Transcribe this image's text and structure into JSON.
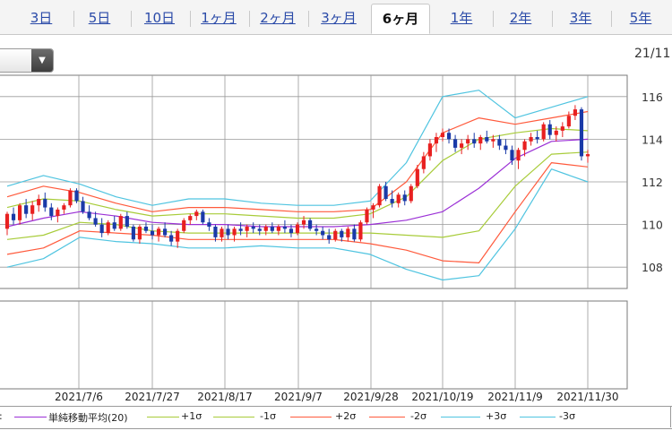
{
  "tabs": [
    {
      "label": "3日",
      "active": false
    },
    {
      "label": "5日",
      "active": false
    },
    {
      "label": "10日",
      "active": false
    },
    {
      "label": "1ヶ月",
      "active": false
    },
    {
      "label": "2ヶ月",
      "active": false
    },
    {
      "label": "3ヶ月",
      "active": false
    },
    {
      "label": "6ヶ月",
      "active": true
    },
    {
      "label": "1年",
      "active": false
    },
    {
      "label": "2年",
      "active": false
    },
    {
      "label": "3年",
      "active": false
    },
    {
      "label": "5年",
      "active": false
    }
  ],
  "date_label": "21/11",
  "legend": {
    "lead": ":",
    "items": [
      {
        "label": "単純移動平均(20)",
        "color": "#9b30d6"
      },
      {
        "label": "+1σ",
        "color": "#a8cc3a"
      },
      {
        "label": "-1σ",
        "color": "#a8cc3a"
      },
      {
        "label": "+2σ",
        "color": "#ff5a3c"
      },
      {
        "label": "-2σ",
        "color": "#ff5a3c"
      },
      {
        "label": "+3σ",
        "color": "#4fc4e0"
      },
      {
        "label": "-3σ",
        "color": "#4fc4e0"
      }
    ]
  },
  "chart_data": {
    "type": "candlestick",
    "y_ticks": [
      108,
      110,
      112,
      114,
      116
    ],
    "ylim": [
      107.0,
      117.0
    ],
    "x_ticks": [
      "2021/7/6",
      "2021/7/27",
      "2021/8/17",
      "2021/9/7",
      "2021/9/28",
      "2021/10/19",
      "2021/11/9",
      "2021/11/30"
    ],
    "up_color": "#e82020",
    "down_color": "#1a3aa8",
    "series": [
      {
        "name": "単純移動平均(20)",
        "color": "#9b30d6",
        "values": [
          109.9,
          110.3,
          110.6,
          110.4,
          110.1,
          110.0,
          110.0,
          109.9,
          109.9,
          109.9,
          110.0,
          110.2,
          110.6,
          111.7,
          113.1,
          113.9,
          114.0
        ]
      },
      {
        "name": "+1σ",
        "color": "#a8cc3a",
        "values": [
          110.8,
          111.2,
          111.1,
          110.7,
          110.4,
          110.5,
          110.5,
          110.4,
          110.3,
          110.3,
          110.5,
          111.3,
          113.0,
          114.0,
          114.3,
          114.5,
          114.4
        ]
      },
      {
        "name": "-1σ",
        "color": "#a8cc3a",
        "values": [
          109.3,
          109.5,
          110.1,
          110.0,
          109.7,
          109.6,
          109.6,
          109.6,
          109.6,
          109.6,
          109.6,
          109.5,
          109.4,
          109.7,
          111.8,
          113.3,
          113.4
        ]
      },
      {
        "name": "+2σ",
        "color": "#ff5a3c",
        "values": [
          111.3,
          111.8,
          111.5,
          111.0,
          110.6,
          110.8,
          110.8,
          110.7,
          110.6,
          110.6,
          110.7,
          112.0,
          114.3,
          115.0,
          114.7,
          115.0,
          115.3
        ]
      },
      {
        "name": "-2σ",
        "color": "#ff5a3c",
        "values": [
          108.6,
          108.9,
          109.7,
          109.6,
          109.5,
          109.3,
          109.3,
          109.3,
          109.3,
          109.3,
          109.1,
          108.8,
          108.3,
          108.2,
          110.6,
          112.9,
          112.7
        ]
      },
      {
        "name": "+3σ",
        "color": "#4fc4e0",
        "values": [
          111.8,
          112.3,
          111.9,
          111.3,
          110.9,
          111.2,
          111.2,
          111.0,
          110.9,
          110.9,
          111.1,
          112.9,
          116.0,
          116.3,
          115.0,
          115.5,
          116.0
        ]
      },
      {
        "name": "-3σ",
        "color": "#4fc4e0",
        "values": [
          108.0,
          108.4,
          109.4,
          109.2,
          109.1,
          108.9,
          108.9,
          109.0,
          108.9,
          108.9,
          108.6,
          107.9,
          107.4,
          107.6,
          109.8,
          112.6,
          112.0
        ]
      }
    ],
    "candles": [
      {
        "o": 109.8,
        "h": 110.6,
        "l": 109.5,
        "c": 110.5
      },
      {
        "o": 110.5,
        "h": 110.8,
        "l": 110.0,
        "c": 110.2
      },
      {
        "o": 110.2,
        "h": 111.0,
        "l": 110.0,
        "c": 110.9
      },
      {
        "o": 110.9,
        "h": 111.2,
        "l": 110.3,
        "c": 110.5
      },
      {
        "o": 110.5,
        "h": 111.1,
        "l": 110.2,
        "c": 110.9
      },
      {
        "o": 110.9,
        "h": 111.4,
        "l": 110.6,
        "c": 111.2
      },
      {
        "o": 111.2,
        "h": 111.5,
        "l": 110.6,
        "c": 110.8
      },
      {
        "o": 110.8,
        "h": 111.0,
        "l": 110.2,
        "c": 110.4
      },
      {
        "o": 110.4,
        "h": 110.8,
        "l": 110.1,
        "c": 110.7
      },
      {
        "o": 110.7,
        "h": 111.0,
        "l": 110.5,
        "c": 110.9
      },
      {
        "o": 110.9,
        "h": 111.7,
        "l": 110.8,
        "c": 111.6
      },
      {
        "o": 111.6,
        "h": 111.7,
        "l": 111.0,
        "c": 111.1
      },
      {
        "o": 111.1,
        "h": 111.3,
        "l": 110.5,
        "c": 110.6
      },
      {
        "o": 110.6,
        "h": 110.9,
        "l": 110.2,
        "c": 110.3
      },
      {
        "o": 110.3,
        "h": 110.6,
        "l": 109.9,
        "c": 110.0
      },
      {
        "o": 110.0,
        "h": 110.3,
        "l": 109.4,
        "c": 109.6
      },
      {
        "o": 109.6,
        "h": 110.2,
        "l": 109.5,
        "c": 110.1
      },
      {
        "o": 110.1,
        "h": 110.4,
        "l": 109.7,
        "c": 109.8
      },
      {
        "o": 109.8,
        "h": 110.5,
        "l": 109.7,
        "c": 110.4
      },
      {
        "o": 110.4,
        "h": 110.6,
        "l": 109.8,
        "c": 109.9
      },
      {
        "o": 109.9,
        "h": 110.0,
        "l": 109.2,
        "c": 109.3
      },
      {
        "o": 109.3,
        "h": 110.0,
        "l": 109.1,
        "c": 109.9
      },
      {
        "o": 109.9,
        "h": 110.1,
        "l": 109.6,
        "c": 109.7
      },
      {
        "o": 109.7,
        "h": 110.0,
        "l": 109.3,
        "c": 109.5
      },
      {
        "o": 109.5,
        "h": 109.9,
        "l": 109.2,
        "c": 109.8
      },
      {
        "o": 109.8,
        "h": 110.1,
        "l": 109.4,
        "c": 109.5
      },
      {
        "o": 109.5,
        "h": 109.7,
        "l": 109.0,
        "c": 109.2
      },
      {
        "o": 109.2,
        "h": 109.8,
        "l": 108.9,
        "c": 109.7
      },
      {
        "o": 109.7,
        "h": 110.3,
        "l": 109.6,
        "c": 110.2
      },
      {
        "o": 110.2,
        "h": 110.5,
        "l": 110.0,
        "c": 110.4
      },
      {
        "o": 110.4,
        "h": 110.7,
        "l": 110.2,
        "c": 110.6
      },
      {
        "o": 110.6,
        "h": 110.7,
        "l": 110.0,
        "c": 110.1
      },
      {
        "o": 110.1,
        "h": 110.3,
        "l": 109.7,
        "c": 109.9
      },
      {
        "o": 109.9,
        "h": 110.0,
        "l": 109.2,
        "c": 109.4
      },
      {
        "o": 109.4,
        "h": 109.9,
        "l": 109.2,
        "c": 109.8
      },
      {
        "o": 109.8,
        "h": 110.0,
        "l": 109.3,
        "c": 109.5
      },
      {
        "o": 109.5,
        "h": 109.9,
        "l": 109.2,
        "c": 109.8
      },
      {
        "o": 109.8,
        "h": 110.1,
        "l": 109.5,
        "c": 109.7
      },
      {
        "o": 109.7,
        "h": 110.0,
        "l": 109.4,
        "c": 109.9
      },
      {
        "o": 109.9,
        "h": 110.1,
        "l": 109.6,
        "c": 109.8
      },
      {
        "o": 109.8,
        "h": 110.0,
        "l": 109.5,
        "c": 109.7
      },
      {
        "o": 109.7,
        "h": 110.0,
        "l": 109.5,
        "c": 109.9
      },
      {
        "o": 109.9,
        "h": 110.1,
        "l": 109.6,
        "c": 109.7
      },
      {
        "o": 109.7,
        "h": 110.0,
        "l": 109.5,
        "c": 109.9
      },
      {
        "o": 109.9,
        "h": 110.2,
        "l": 109.6,
        "c": 109.8
      },
      {
        "o": 109.8,
        "h": 110.0,
        "l": 109.4,
        "c": 109.6
      },
      {
        "o": 109.6,
        "h": 110.1,
        "l": 109.5,
        "c": 110.0
      },
      {
        "o": 110.0,
        "h": 110.4,
        "l": 109.8,
        "c": 110.2
      },
      {
        "o": 110.2,
        "h": 110.3,
        "l": 109.7,
        "c": 109.8
      },
      {
        "o": 109.8,
        "h": 110.0,
        "l": 109.5,
        "c": 109.7
      },
      {
        "o": 109.7,
        "h": 109.9,
        "l": 109.3,
        "c": 109.5
      },
      {
        "o": 109.5,
        "h": 109.8,
        "l": 109.1,
        "c": 109.3
      },
      {
        "o": 109.3,
        "h": 109.8,
        "l": 109.2,
        "c": 109.7
      },
      {
        "o": 109.7,
        "h": 109.8,
        "l": 109.2,
        "c": 109.4
      },
      {
        "o": 109.4,
        "h": 109.9,
        "l": 109.2,
        "c": 109.8
      },
      {
        "o": 109.8,
        "h": 110.0,
        "l": 109.2,
        "c": 109.3
      },
      {
        "o": 109.3,
        "h": 110.2,
        "l": 109.2,
        "c": 110.1
      },
      {
        "o": 110.1,
        "h": 110.8,
        "l": 110.0,
        "c": 110.7
      },
      {
        "o": 110.7,
        "h": 111.0,
        "l": 110.3,
        "c": 110.9
      },
      {
        "o": 110.9,
        "h": 111.9,
        "l": 110.8,
        "c": 111.8
      },
      {
        "o": 111.8,
        "h": 112.0,
        "l": 111.1,
        "c": 111.2
      },
      {
        "o": 111.2,
        "h": 111.6,
        "l": 110.8,
        "c": 111.0
      },
      {
        "o": 111.0,
        "h": 111.5,
        "l": 110.8,
        "c": 111.4
      },
      {
        "o": 111.4,
        "h": 111.6,
        "l": 110.9,
        "c": 111.1
      },
      {
        "o": 111.1,
        "h": 111.9,
        "l": 111.0,
        "c": 111.8
      },
      {
        "o": 111.8,
        "h": 112.8,
        "l": 111.7,
        "c": 112.6
      },
      {
        "o": 112.6,
        "h": 113.4,
        "l": 112.4,
        "c": 113.2
      },
      {
        "o": 113.2,
        "h": 114.0,
        "l": 113.0,
        "c": 113.8
      },
      {
        "o": 113.8,
        "h": 114.3,
        "l": 113.4,
        "c": 114.1
      },
      {
        "o": 114.1,
        "h": 114.5,
        "l": 113.9,
        "c": 114.3
      },
      {
        "o": 114.3,
        "h": 114.5,
        "l": 113.8,
        "c": 114.0
      },
      {
        "o": 114.0,
        "h": 114.2,
        "l": 113.4,
        "c": 113.6
      },
      {
        "o": 113.6,
        "h": 114.0,
        "l": 113.3,
        "c": 113.8
      },
      {
        "o": 113.8,
        "h": 114.2,
        "l": 113.5,
        "c": 114.0
      },
      {
        "o": 114.0,
        "h": 114.3,
        "l": 113.6,
        "c": 113.8
      },
      {
        "o": 113.8,
        "h": 114.2,
        "l": 113.5,
        "c": 114.1
      },
      {
        "o": 114.1,
        "h": 114.4,
        "l": 113.8,
        "c": 113.9
      },
      {
        "o": 113.9,
        "h": 114.2,
        "l": 113.6,
        "c": 114.0
      },
      {
        "o": 114.0,
        "h": 114.2,
        "l": 113.5,
        "c": 113.7
      },
      {
        "o": 113.7,
        "h": 114.0,
        "l": 113.3,
        "c": 113.5
      },
      {
        "o": 113.5,
        "h": 113.7,
        "l": 112.8,
        "c": 113.0
      },
      {
        "o": 113.0,
        "h": 113.6,
        "l": 112.6,
        "c": 113.5
      },
      {
        "o": 113.5,
        "h": 114.0,
        "l": 113.2,
        "c": 113.9
      },
      {
        "o": 113.9,
        "h": 114.3,
        "l": 113.7,
        "c": 114.1
      },
      {
        "o": 114.1,
        "h": 114.4,
        "l": 113.8,
        "c": 114.0
      },
      {
        "o": 114.0,
        "h": 114.8,
        "l": 113.9,
        "c": 114.7
      },
      {
        "o": 114.7,
        "h": 114.9,
        "l": 114.0,
        "c": 114.2
      },
      {
        "o": 114.2,
        "h": 114.6,
        "l": 113.9,
        "c": 114.4
      },
      {
        "o": 114.4,
        "h": 114.8,
        "l": 114.1,
        "c": 114.6
      },
      {
        "o": 114.6,
        "h": 115.3,
        "l": 114.5,
        "c": 115.1
      },
      {
        "o": 115.1,
        "h": 115.6,
        "l": 114.9,
        "c": 115.4
      },
      {
        "o": 115.4,
        "h": 115.5,
        "l": 113.0,
        "c": 113.2
      },
      {
        "o": 113.2,
        "h": 113.5,
        "l": 112.9,
        "c": 113.3
      }
    ]
  }
}
